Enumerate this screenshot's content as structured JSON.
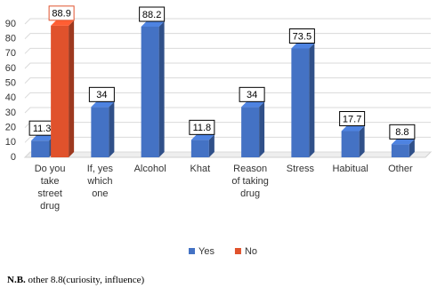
{
  "chart_data": {
    "type": "bar3d",
    "categories": [
      "Do you take street drug",
      "If, yes which one",
      "Alcohol",
      "Khat",
      "Reason of taking drug",
      "Stress",
      "Habitual",
      "Other"
    ],
    "series": [
      {
        "name": "Yes",
        "color": "#4472c4",
        "values": [
          11.3,
          34,
          88.2,
          11.8,
          34,
          73.5,
          17.7,
          8.8
        ]
      },
      {
        "name": "No",
        "color": "#e0522c",
        "values": [
          88.9,
          null,
          null,
          null,
          null,
          null,
          null,
          null
        ]
      }
    ],
    "ylim": [
      0,
      90
    ],
    "yticks": [
      0,
      10,
      20,
      30,
      40,
      50,
      60,
      70,
      80,
      90
    ],
    "grid": true,
    "legend": "bottom"
  },
  "note": {
    "label": "N.B.",
    "text": "other 8.8(curiosity, influence)"
  }
}
